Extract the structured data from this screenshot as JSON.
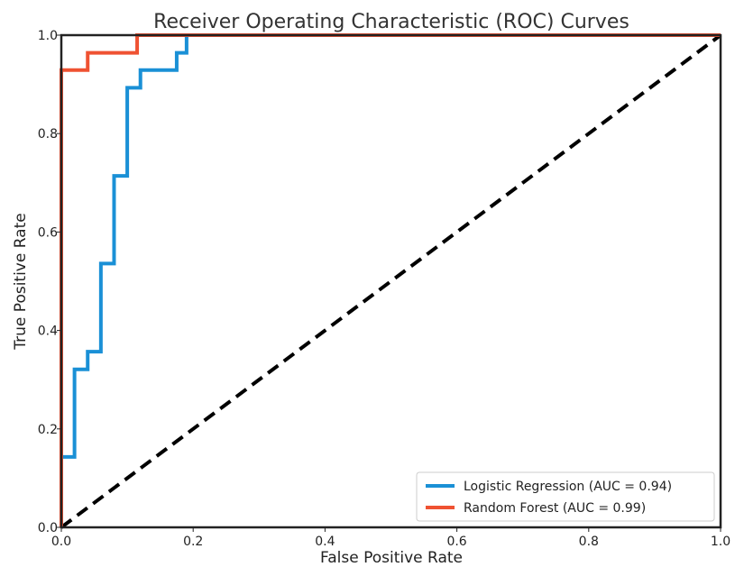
{
  "chart_data": {
    "type": "line",
    "title": "Receiver Operating Characteristic (ROC) Curves",
    "xlabel": "False Positive Rate",
    "ylabel": "True Positive Rate",
    "xlim": [
      0.0,
      1.0
    ],
    "ylim": [
      0.0,
      1.0
    ],
    "xticks": [
      0.0,
      0.2,
      0.4,
      0.6,
      0.8,
      1.0
    ],
    "yticks": [
      0.0,
      0.2,
      0.4,
      0.6,
      0.8,
      1.0
    ],
    "xtick_labels": [
      "0.0",
      "0.2",
      "0.4",
      "0.6",
      "0.8",
      "1.0"
    ],
    "ytick_labels": [
      "0.0",
      "0.2",
      "0.4",
      "0.6",
      "0.8",
      "1.0"
    ],
    "grid": false,
    "legend_position": "bottom-right",
    "series": [
      {
        "name": "Logistic Regression (AUC = 0.94)",
        "color": "#1a90d6",
        "x": [
          0.0,
          0.0,
          0.02,
          0.02,
          0.04,
          0.04,
          0.06,
          0.06,
          0.08,
          0.08,
          0.1,
          0.1,
          0.12,
          0.12,
          0.175,
          0.175,
          0.19,
          0.19,
          1.0
        ],
        "y": [
          0.0,
          0.143,
          0.143,
          0.321,
          0.321,
          0.357,
          0.357,
          0.536,
          0.536,
          0.714,
          0.714,
          0.893,
          0.893,
          0.929,
          0.929,
          0.964,
          0.964,
          1.0,
          1.0
        ]
      },
      {
        "name": "Random Forest (AUC = 0.99)",
        "color": "#ef5232",
        "x": [
          0.0,
          0.0,
          0.04,
          0.04,
          0.115,
          0.115,
          1.0
        ],
        "y": [
          0.0,
          0.929,
          0.929,
          0.964,
          0.964,
          1.0,
          1.0
        ]
      }
    ],
    "reference_line": {
      "x": [
        0.0,
        1.0
      ],
      "y": [
        0.0,
        1.0
      ],
      "color": "#000000",
      "style": "dashed"
    }
  }
}
